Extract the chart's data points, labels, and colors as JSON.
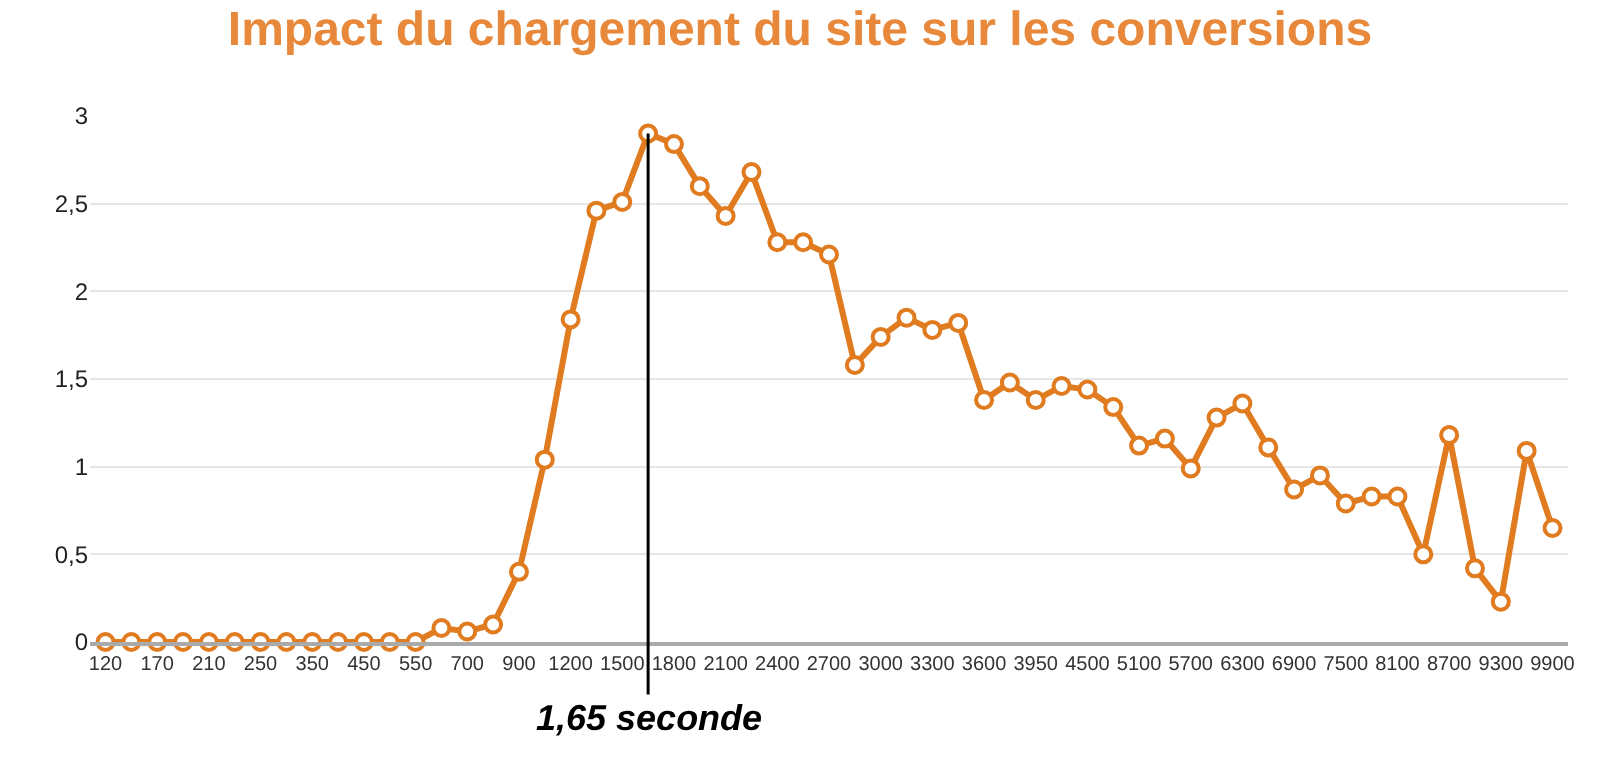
{
  "chart_data": {
    "type": "line",
    "title": "Impact du chargement du site sur les conversions",
    "categories": [
      "120",
      null,
      "170",
      null,
      "210",
      null,
      "250",
      null,
      "350",
      null,
      "450",
      null,
      "550",
      null,
      "700",
      null,
      "900",
      null,
      "1200",
      null,
      "1500",
      null,
      "1800",
      null,
      "2100",
      null,
      "2400",
      null,
      "2700",
      null,
      "3000",
      null,
      "3300",
      null,
      "3600",
      null,
      "3950",
      null,
      "4500",
      null,
      "5100",
      null,
      "5700",
      null,
      "6300",
      null,
      "6900",
      null,
      "7500",
      null,
      "8100",
      null,
      "8700",
      null,
      "9300",
      null,
      "9900"
    ],
    "series": [
      {
        "color": "#e07b1f",
        "values": [
          0,
          0,
          0,
          0,
          0,
          0,
          0,
          0,
          0,
          0,
          0,
          0,
          0,
          0.08,
          0.06,
          0.1,
          0.4,
          1.04,
          1.84,
          2.46,
          2.51,
          2.9,
          2.84,
          2.6,
          2.43,
          2.68,
          2.28,
          2.28,
          2.21,
          1.58,
          1.74,
          1.85,
          1.78,
          1.82,
          1.38,
          1.48,
          1.38,
          1.46,
          1.44,
          1.34,
          1.12,
          1.16,
          0.99,
          1.28,
          1.36,
          1.11,
          0.87,
          0.95,
          0.79,
          0.83,
          0.83,
          0.5,
          1.18,
          0.42,
          0.23,
          1.09,
          0.65
        ]
      }
    ],
    "ylim": [
      0,
      3
    ],
    "yticks": [
      0,
      {
        "value": 0.5,
        "label": "0,5"
      },
      1,
      {
        "value": 1.5,
        "label": "1,5"
      },
      2,
      {
        "value": 2.5,
        "label": "2,5"
      },
      3
    ],
    "grid": "y",
    "marker": "circle",
    "line_style": "solid",
    "annotations": [
      {
        "text": "1,65 seconde",
        "y": 2.9
      }
    ]
  }
}
